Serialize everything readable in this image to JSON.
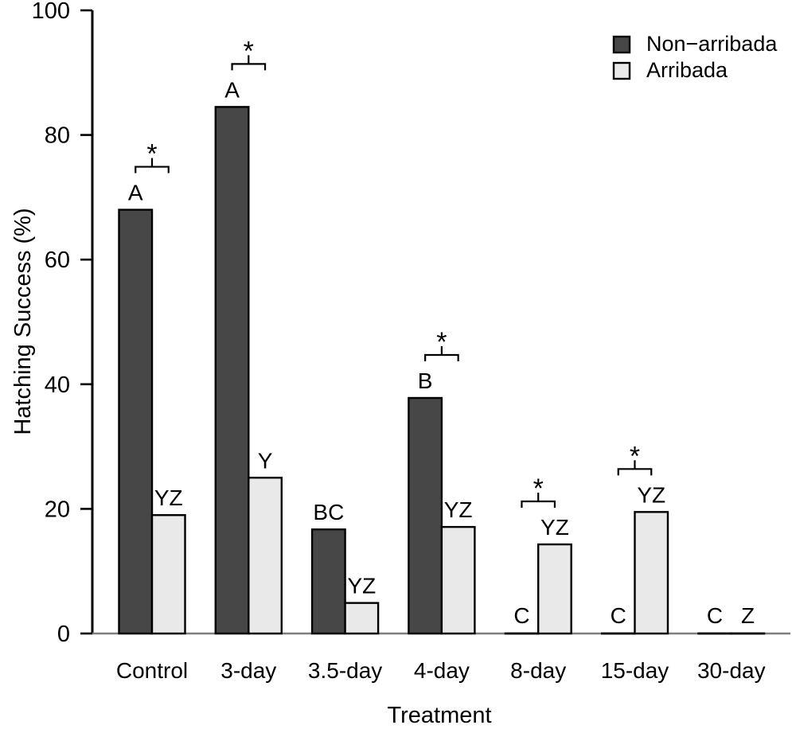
{
  "chart_data": {
    "type": "bar",
    "title": "",
    "xlabel": "Treatment",
    "ylabel": "Hatching Success (%)",
    "ylim": [
      0,
      100
    ],
    "yticks": [
      0,
      20,
      40,
      60,
      80,
      100
    ],
    "grid": false,
    "legend_position": "top-right",
    "categories": [
      "Control",
      "3-day",
      "3.5-day",
      "4-day",
      "8-day",
      "15-day",
      "30-day"
    ],
    "series": [
      {
        "name": "Non−arribada",
        "color": "#474747",
        "values": [
          68,
          84.5,
          16.7,
          37.8,
          0,
          0,
          0
        ],
        "letter_labels": [
          "A",
          "A",
          "BC",
          "B",
          "C",
          "C",
          "C"
        ]
      },
      {
        "name": "Arribada",
        "color": "#e9e9e9",
        "values": [
          19,
          25,
          4.9,
          17.1,
          14.3,
          19.5,
          0
        ],
        "letter_labels": [
          "YZ",
          "Y",
          "YZ",
          "YZ",
          "YZ",
          "YZ",
          "Z"
        ]
      }
    ],
    "significance": {
      "symbol": "*",
      "flags": [
        true,
        true,
        false,
        true,
        true,
        true,
        false
      ]
    },
    "colors": {
      "bar_outline": "#000000",
      "axis": "#000000",
      "baseline": "#7f7f7f",
      "text": "#000000",
      "background": "#ffffff"
    }
  }
}
